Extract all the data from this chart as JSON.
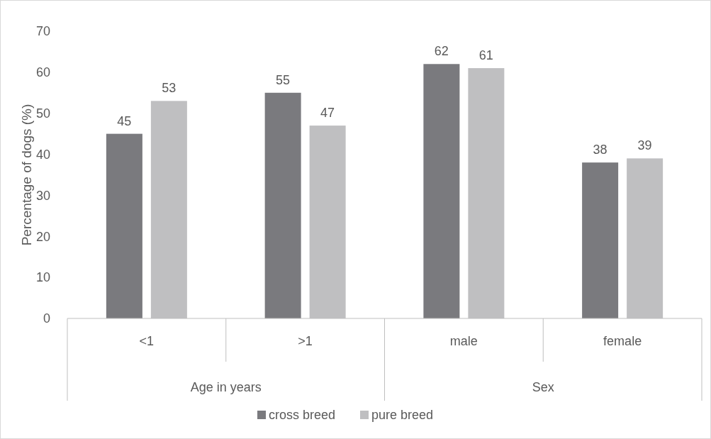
{
  "chart_data": {
    "type": "bar",
    "ylabel": "Percentage of dogs (%)",
    "categories": [
      "<1",
      ">1",
      "male",
      "female"
    ],
    "series": [
      {
        "name": "cross breed",
        "color": "#7a7a7e",
        "values": [
          45,
          55,
          62,
          38
        ]
      },
      {
        "name": "pure breed",
        "color": "#bfbfc1",
        "values": [
          53,
          47,
          61,
          39
        ]
      }
    ],
    "ylim": [
      0,
      70
    ],
    "yticks": [
      0,
      10,
      20,
      30,
      40,
      50,
      60,
      70
    ],
    "data_labels": true,
    "legend": "bottom",
    "grid": false,
    "annotations": [
      "Age in years",
      "Sex"
    ]
  }
}
